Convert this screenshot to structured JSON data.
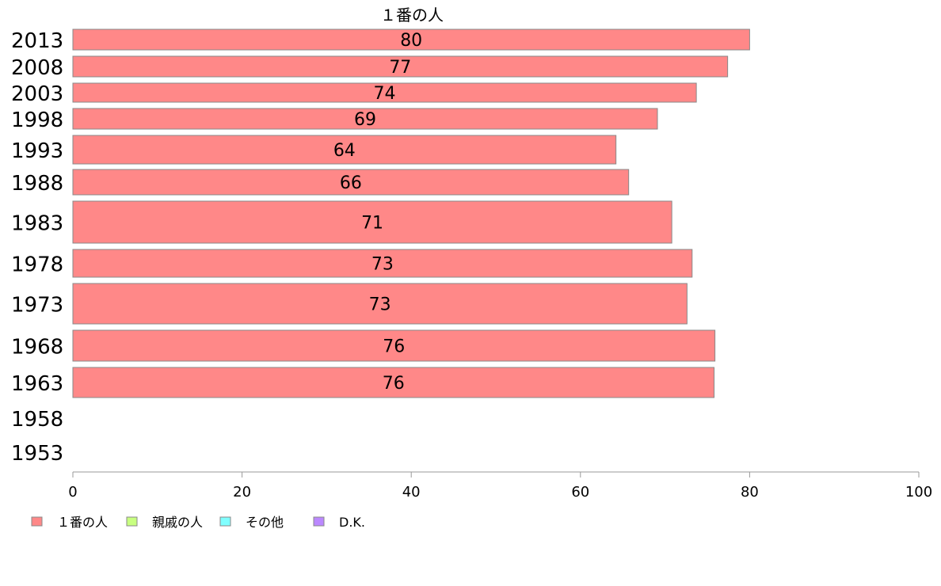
{
  "chart_data": {
    "type": "bar",
    "orientation": "horizontal",
    "title": "１番の人",
    "categories": [
      "2013",
      "2008",
      "2003",
      "1998",
      "1993",
      "1988",
      "1983",
      "1978",
      "1973",
      "1968",
      "1963",
      "1958",
      "1953"
    ],
    "series": [
      {
        "name": "１番の人",
        "color": "#ff8888",
        "values": [
          80,
          77.4,
          73.7,
          69.1,
          64.2,
          65.7,
          70.8,
          73.2,
          72.6,
          75.9,
          75.8,
          null,
          null
        ],
        "labels": [
          "80",
          "77",
          "74",
          "69",
          "64",
          "66",
          "71",
          "73",
          "73",
          "76",
          "76",
          "",
          ""
        ]
      }
    ],
    "xlim": [
      0,
      100
    ],
    "xticks": [
      0,
      20,
      40,
      60,
      80,
      100
    ],
    "legend": {
      "placement": "bottom-left",
      "entries": [
        {
          "label": "１番の人",
          "color": "#ff8888"
        },
        {
          "label": "親戚の人",
          "color": "#c8ff80"
        },
        {
          "label": "その他",
          "color": "#80ffff"
        },
        {
          "label": "D.K.",
          "color": "#bb88ff"
        }
      ]
    },
    "grid": false
  }
}
